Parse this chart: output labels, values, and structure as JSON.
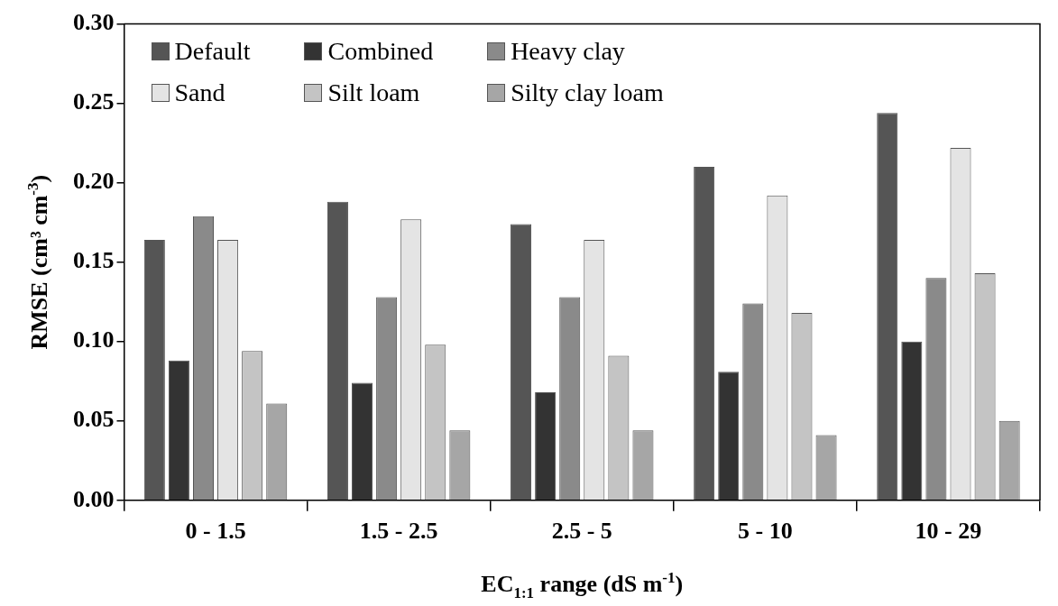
{
  "chart_data": {
    "type": "bar",
    "xlabel": "EC$_{1:1}$ range (dS m$^{-1}$)",
    "ylabel": "RMSE (cm³ cm$^{-3}$)",
    "categories": [
      "0 - 1.5",
      "1.5 - 2.5",
      "2.5 - 5",
      "5 - 10",
      "10 - 29"
    ],
    "series": [
      {
        "name": "Default",
        "color": "#555555",
        "values": [
          0.164,
          0.188,
          0.174,
          0.21,
          0.244
        ]
      },
      {
        "name": "Combined",
        "color": "#333333",
        "values": [
          0.088,
          0.074,
          0.068,
          0.081,
          0.1
        ]
      },
      {
        "name": "Heavy clay",
        "color": "#8a8a8a",
        "values": [
          0.179,
          0.128,
          0.128,
          0.124,
          0.14
        ]
      },
      {
        "name": "Sand",
        "color": "#e4e4e4",
        "values": [
          0.164,
          0.177,
          0.164,
          0.192,
          0.222
        ]
      },
      {
        "name": "Silt loam",
        "color": "#c4c4c4",
        "values": [
          0.094,
          0.098,
          0.091,
          0.118,
          0.143
        ]
      },
      {
        "name": "Silty clay loam",
        "color": "#a6a6a6",
        "values": [
          0.061,
          0.044,
          0.044,
          0.041,
          0.05
        ]
      }
    ],
    "ylim": [
      0,
      0.3
    ],
    "yticks": [
      {
        "value": 0,
        "label": "0.00"
      },
      {
        "value": 0.05,
        "label": "0.05"
      },
      {
        "value": 0.1,
        "label": "0.10"
      },
      {
        "value": 0.15,
        "label": "0.15"
      },
      {
        "value": 0.2,
        "label": "0.20"
      },
      {
        "value": 0.25,
        "label": "0.25"
      },
      {
        "value": 0.3,
        "label": "0.30"
      }
    ],
    "grid": false,
    "legend": "top left"
  }
}
